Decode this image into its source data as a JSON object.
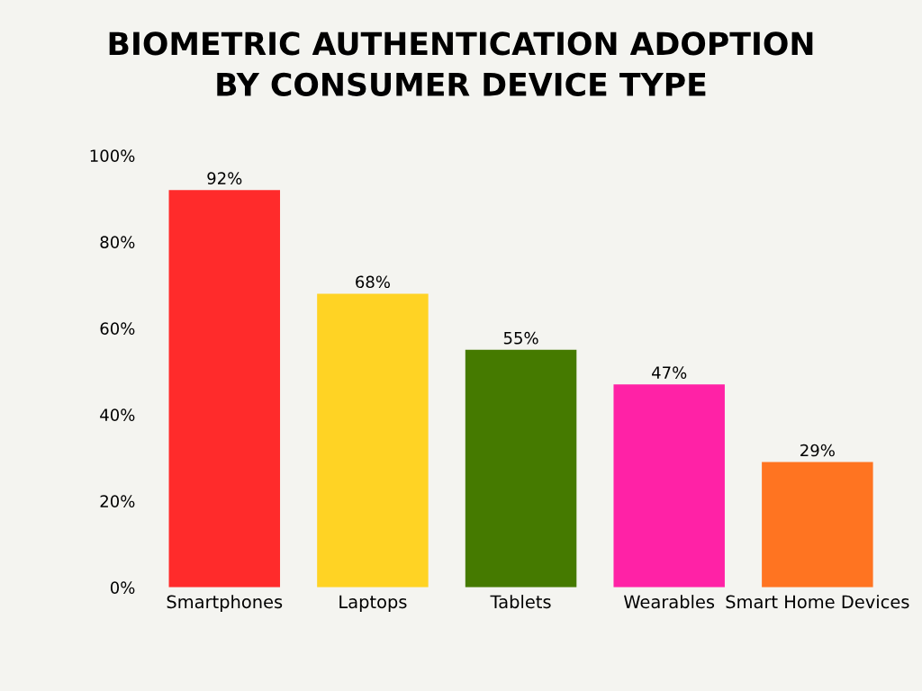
{
  "chart_data": {
    "type": "bar",
    "title": "BIOMETRIC AUTHENTICATION ADOPTION\nBY CONSUMER DEVICE TYPE",
    "categories": [
      "Smartphones",
      "Laptops",
      "Tablets",
      "Wearables",
      "Smart Home Devices"
    ],
    "values": [
      92,
      68,
      55,
      47,
      29
    ],
    "colors": [
      "#ff2b2b",
      "#ffd324",
      "#457a00",
      "#ff22a6",
      "#ff7421"
    ],
    "value_labels": [
      "92%",
      "68%",
      "55%",
      "47%",
      "29%"
    ],
    "ylim": [
      0,
      100
    ],
    "yticks": [
      {
        "value": 0,
        "label": "0%"
      },
      {
        "value": 20,
        "label": "20%"
      },
      {
        "value": 40,
        "label": "40%"
      },
      {
        "value": 60,
        "label": "60%"
      },
      {
        "value": 80,
        "label": "80%"
      },
      {
        "value": 100,
        "label": "100%"
      }
    ],
    "grid": false,
    "legend": false
  }
}
